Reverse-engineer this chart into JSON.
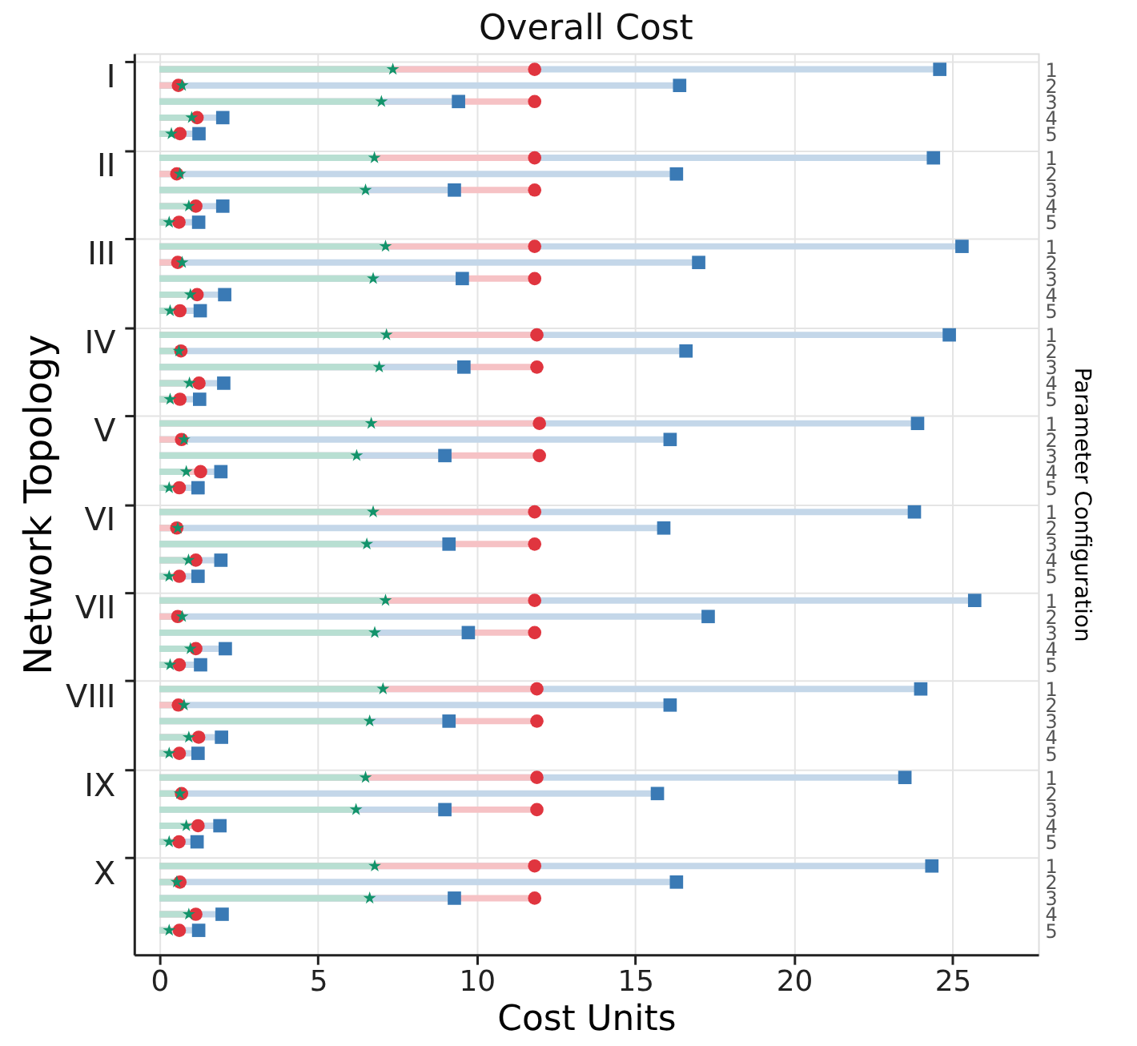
{
  "chart_data": {
    "type": "lollipop",
    "orientation": "horizontal",
    "title": "Overall Cost",
    "xlabel": "Cost Units",
    "ylabel": "Network Topology",
    "y2label": "Parameter Configuration",
    "categories": [
      "1",
      "2",
      "3",
      "4",
      "5",
      "1",
      "2",
      "3",
      "4",
      "5",
      "1",
      "2",
      "3",
      "4",
      "5",
      "1",
      "2",
      "3",
      "4",
      "5",
      "1",
      "2",
      "3",
      "4",
      "5",
      "1",
      "2",
      "3",
      "4",
      "5",
      "1",
      "2",
      "3",
      "4",
      "5",
      "1",
      "2",
      "3",
      "4",
      "5",
      "1",
      "2",
      "3",
      "4",
      "5",
      "1",
      "2",
      "3",
      "4",
      "5"
    ],
    "y_categories": [
      "I",
      "II",
      "III",
      "IV",
      "V",
      "VI",
      "VII",
      "VIII",
      "IX",
      "X"
    ],
    "series": [
      {
        "color": "#3a7ab5",
        "marker": "square",
        "values": [
          24.6,
          16.4,
          9.43,
          2.0,
          1.25,
          24.4,
          16.3,
          9.3,
          2.0,
          1.24,
          25.3,
          17.0,
          9.55,
          2.06,
          1.29,
          24.9,
          16.6,
          9.6,
          2.03,
          1.27,
          23.9,
          16.1,
          9.0,
          1.94,
          1.22,
          23.8,
          15.9,
          9.13,
          1.94,
          1.22,
          25.7,
          17.3,
          9.74,
          2.08,
          1.3,
          24.0,
          16.1,
          9.13,
          1.96,
          1.22,
          23.5,
          15.7,
          9.0,
          1.91,
          1.19,
          24.35,
          16.3,
          9.3,
          1.98,
          1.24
        ]
      },
      {
        "color": "#e0353f",
        "marker": "circle",
        "values": [
          11.83,
          0.6,
          11.83,
          1.19,
          0.65,
          11.83,
          0.55,
          11.83,
          1.15,
          0.62,
          11.83,
          0.58,
          11.83,
          1.19,
          0.65,
          11.9,
          0.68,
          11.9,
          1.25,
          0.65,
          11.98,
          0.7,
          11.98,
          1.3,
          0.63,
          11.83,
          0.55,
          11.83,
          1.15,
          0.63,
          11.83,
          0.58,
          11.83,
          1.15,
          0.63,
          11.9,
          0.6,
          11.9,
          1.24,
          0.63,
          11.9,
          0.7,
          11.9,
          1.22,
          0.62,
          11.83,
          0.65,
          11.83,
          1.15,
          0.63
        ]
      },
      {
        "color": "#12936a",
        "marker": "star",
        "values": [
          7.36,
          0.72,
          7.0,
          1.02,
          0.38,
          6.78,
          0.65,
          6.5,
          0.93,
          0.31,
          7.13,
          0.72,
          6.74,
          0.98,
          0.34,
          7.16,
          0.62,
          6.93,
          0.95,
          0.34,
          6.68,
          0.78,
          6.22,
          0.85,
          0.31,
          6.74,
          0.58,
          6.54,
          0.92,
          0.31,
          7.13,
          0.72,
          6.79,
          0.98,
          0.34,
          7.05,
          0.78,
          6.63,
          0.93,
          0.31,
          6.5,
          0.65,
          6.2,
          0.85,
          0.31,
          6.79,
          0.55,
          6.63,
          0.93,
          0.31
        ]
      }
    ],
    "xlim": [
      -0.8,
      27.7
    ],
    "xticks": [
      0,
      5,
      10,
      15,
      20,
      25
    ],
    "grid": true
  }
}
